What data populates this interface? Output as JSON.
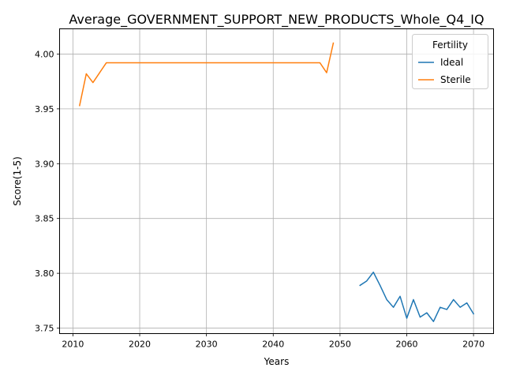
{
  "chart_data": {
    "type": "line",
    "title": "Average_GOVERNMENT_SUPPORT_NEW_PRODUCTS_Whole_Q4_IQ",
    "xlabel": "Years",
    "ylabel": "Score(1-5)",
    "xlim": [
      2008,
      2073
    ],
    "ylim": [
      3.745,
      4.023
    ],
    "xticks": [
      2010,
      2020,
      2030,
      2040,
      2050,
      2060,
      2070
    ],
    "yticks": [
      3.75,
      3.8,
      3.85,
      3.9,
      3.95,
      4.0
    ],
    "ytick_labels": [
      "3.75",
      "3.80",
      "3.85",
      "3.90",
      "3.95",
      "4.00"
    ],
    "grid": true,
    "legend": {
      "title": "Fertility",
      "position": "top-right"
    },
    "series": [
      {
        "name": "Ideal",
        "color": "#1f77b4",
        "x": [
          2053,
          2054,
          2055,
          2056,
          2057,
          2058,
          2059,
          2060,
          2061,
          2062,
          2063,
          2064,
          2065,
          2066,
          2067,
          2068,
          2069,
          2070
        ],
        "y": [
          3.789,
          3.793,
          3.801,
          3.789,
          3.776,
          3.769,
          3.779,
          3.759,
          3.776,
          3.76,
          3.764,
          3.756,
          3.769,
          3.767,
          3.776,
          3.769,
          3.773,
          3.763
        ]
      },
      {
        "name": "Sterile",
        "color": "#ff7f0e",
        "x": [
          2011,
          2012,
          2013,
          2014,
          2015,
          2016,
          2020,
          2025,
          2030,
          2035,
          2040,
          2045,
          2047,
          2048,
          2049
        ],
        "y": [
          3.953,
          3.982,
          3.974,
          3.983,
          3.992,
          3.992,
          3.992,
          3.992,
          3.992,
          3.992,
          3.992,
          3.992,
          3.992,
          3.983,
          4.01
        ]
      }
    ]
  }
}
